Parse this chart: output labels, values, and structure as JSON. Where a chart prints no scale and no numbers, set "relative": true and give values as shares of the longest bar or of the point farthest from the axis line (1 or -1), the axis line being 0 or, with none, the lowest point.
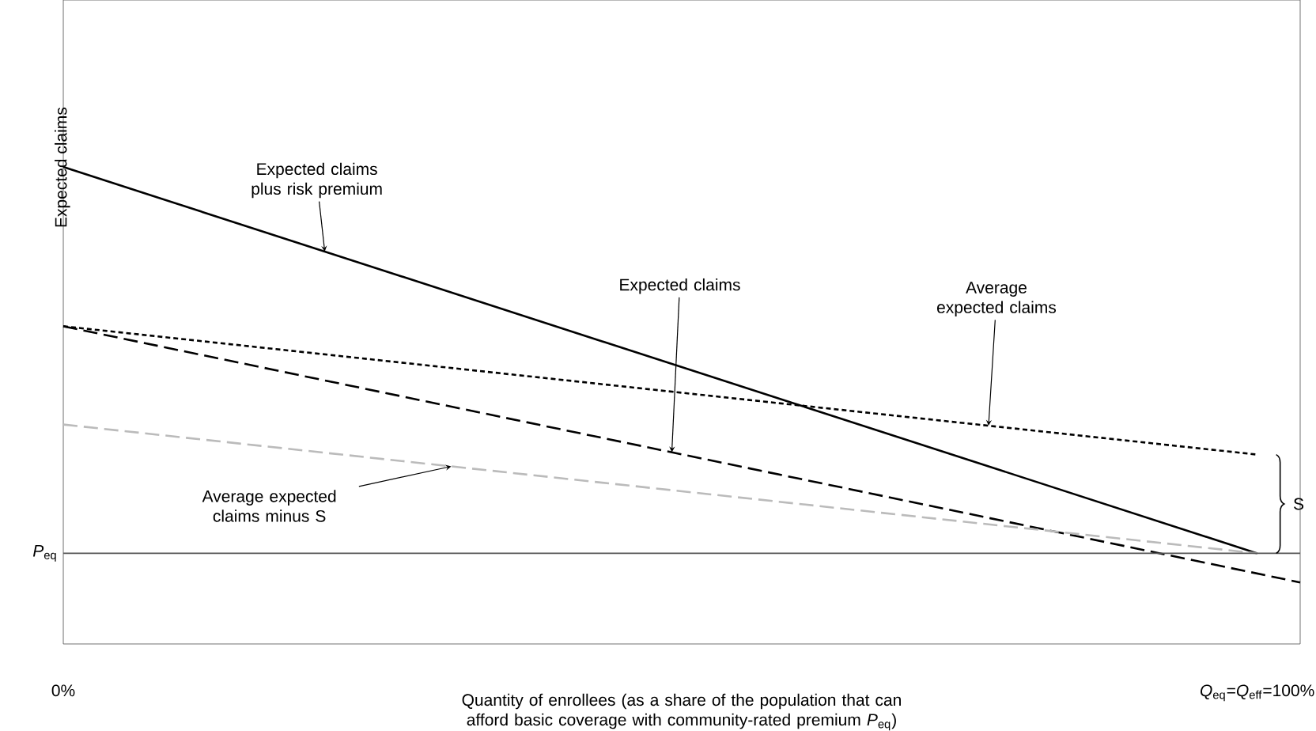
{
  "chart_data": {
    "type": "line",
    "relative": true,
    "xlabel": "Quantity of enrollees (as a share of the population that can afford basic coverage with community-rated premium *P*$_{eq}$)",
    "ylabel": "Expected claims",
    "xlim": [
      0,
      103.6
    ],
    "xticks": [
      {
        "value": 0,
        "label": "0%"
      },
      {
        "value": 100,
        "label": "*Q*$_{eq}$=*Q*$_{eff}$=100%"
      }
    ],
    "grid": false,
    "marker": "none",
    "series": [
      {
        "name": "Expected claims plus risk premium",
        "color": "#000000",
        "line_style": "solid",
        "x": [
          0,
          100
        ],
        "values": [
          1.0,
          0.19
        ]
      },
      {
        "name": "Average expected claims",
        "color": "#000000",
        "line_style": "dotted",
        "x": [
          0,
          100
        ],
        "values": [
          0.666,
          0.397
        ]
      },
      {
        "name": "Expected claims",
        "color": "#000000",
        "line_style": "dashed",
        "x": [
          0,
          103.6
        ],
        "values": [
          0.666,
          0.129
        ]
      },
      {
        "name": "Average expected claims minus S",
        "color": "#bbbbbb",
        "line_style": "dashed",
        "x": [
          0,
          100
        ],
        "values": [
          0.46,
          0.19
        ]
      }
    ],
    "ref_lines": [
      {
        "axis": "y",
        "value": 0.19,
        "label": "*P*$_{eq}$",
        "color": "#555555",
        "line_style": "solid"
      }
    ],
    "annotations": [
      "S"
    ]
  }
}
